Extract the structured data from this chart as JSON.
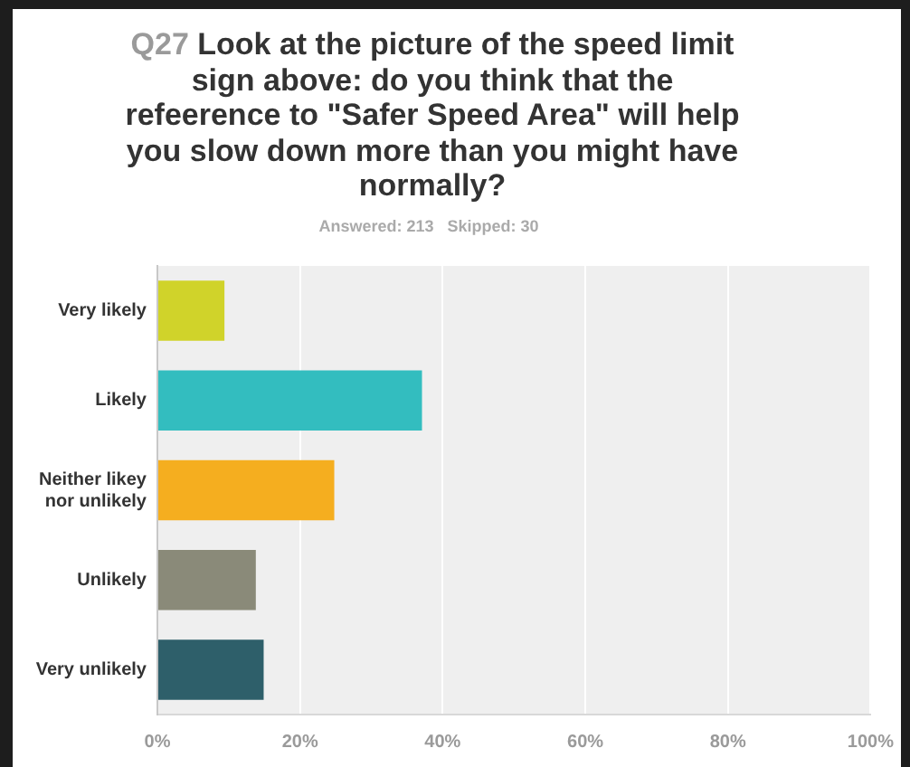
{
  "chart_data": {
    "type": "bar",
    "orientation": "horizontal",
    "title": "Q27 Look at the picture of the speed limit sign above: do you think that the refeerence to \"Safer Speed Area\" will help you slow down more than you might have normally?",
    "subtitle": "Answered: 213   Skipped: 30",
    "categories": [
      "Very likely",
      "Likely",
      "Neither likey nor unlikely",
      "Unlikely",
      "Very unlikely"
    ],
    "values": [
      9.4,
      37.1,
      24.8,
      13.8,
      14.9
    ],
    "colors": [
      "#d0d32a",
      "#33bdbf",
      "#f5ae1f",
      "#8a8a79",
      "#2e5f6a"
    ],
    "xlim": [
      0,
      100
    ],
    "xticks": [
      {
        "value": 0,
        "label": "0%"
      },
      {
        "value": 20,
        "label": "20%"
      },
      {
        "value": 40,
        "label": "40%"
      },
      {
        "value": 60,
        "label": "60%"
      },
      {
        "value": 80,
        "label": "80%"
      },
      {
        "value": 100,
        "label": "100%"
      }
    ],
    "grid": "x"
  }
}
